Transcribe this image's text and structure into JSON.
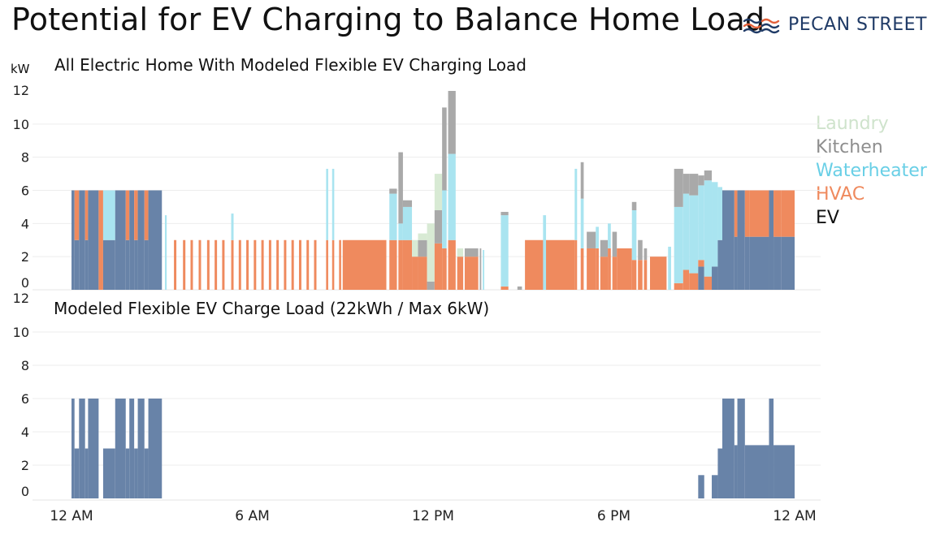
{
  "title": "Potential for EV Charging to Balance Home Load",
  "brand": {
    "name": "PECAN STREET",
    "icon": "pecan-street-logo-icon",
    "color": "#1f3a66"
  },
  "unit_label": "kW",
  "legend": [
    {
      "name": "Laundry",
      "color": "#cfe3cc"
    },
    {
      "name": "Kitchen",
      "color": "#8e8e8e"
    },
    {
      "name": "Waterheater",
      "color": "#69cfe6"
    },
    {
      "name": "HVAC",
      "color": "#ef8a5e"
    },
    {
      "name": "EV",
      "color": "#111111"
    }
  ],
  "chart_data": [
    {
      "type": "area",
      "stacked": true,
      "title": "All Electric Home With Modeled Flexible EV Charging Load",
      "ylabel": "kW",
      "ylim": [
        0,
        12
      ],
      "yticks": [
        0,
        2,
        4,
        6,
        8,
        10,
        12
      ],
      "x_ticks": [
        "12 AM",
        "6 AM",
        "12 PM",
        "6 PM",
        "12 AM"
      ],
      "x_range_hours": [
        0,
        24
      ],
      "series_order": [
        "EV",
        "HVAC",
        "Waterheater",
        "Kitchen",
        "Laundry"
      ],
      "series_colors": {
        "EV": "#6883a8",
        "HVAC": "#ef8a5e",
        "Waterheater": "#a9e4f0",
        "Kitchen": "#a9a9a9",
        "Laundry": "#d8ead4"
      },
      "segments": [
        {
          "t": [
            0.0,
            0.1
          ],
          "EV": 6
        },
        {
          "t": [
            0.1,
            0.25
          ],
          "EV": 3,
          "HVAC": 3
        },
        {
          "t": [
            0.25,
            0.45
          ],
          "EV": 6
        },
        {
          "t": [
            0.45,
            0.55
          ],
          "EV": 3,
          "HVAC": 3
        },
        {
          "t": [
            0.55,
            0.9
          ],
          "EV": 6
        },
        {
          "t": [
            0.9,
            1.05
          ],
          "HVAC": 6
        },
        {
          "t": [
            1.05,
            1.45
          ],
          "EV": 3,
          "Waterheater": 3
        },
        {
          "t": [
            1.45,
            1.8
          ],
          "EV": 6
        },
        {
          "t": [
            1.8,
            1.92
          ],
          "EV": 3,
          "HVAC": 3
        },
        {
          "t": [
            1.92,
            2.08
          ],
          "EV": 6
        },
        {
          "t": [
            2.08,
            2.2
          ],
          "EV": 3,
          "HVAC": 3
        },
        {
          "t": [
            2.2,
            2.42
          ],
          "EV": 6
        },
        {
          "t": [
            2.42,
            2.55
          ],
          "EV": 3,
          "HVAC": 3
        },
        {
          "t": [
            2.55,
            3.0
          ],
          "EV": 6
        },
        {
          "t": [
            3.1,
            3.16
          ],
          "Waterheater": 4.5
        },
        {
          "t": [
            3.4,
            3.48
          ],
          "HVAC": 3
        },
        {
          "t": [
            3.7,
            3.78
          ],
          "HVAC": 3
        },
        {
          "t": [
            3.95,
            4.03
          ],
          "HVAC": 3
        },
        {
          "t": [
            4.22,
            4.3
          ],
          "HVAC": 3
        },
        {
          "t": [
            4.5,
            4.58
          ],
          "HVAC": 3
        },
        {
          "t": [
            4.75,
            4.83
          ],
          "HVAC": 3
        },
        {
          "t": [
            5.0,
            5.08
          ],
          "HVAC": 3
        },
        {
          "t": [
            5.3,
            5.38
          ],
          "HVAC": 3,
          "Waterheater": 1.6
        },
        {
          "t": [
            5.55,
            5.63
          ],
          "HVAC": 3
        },
        {
          "t": [
            5.8,
            5.88
          ],
          "HVAC": 3
        },
        {
          "t": [
            6.05,
            6.13
          ],
          "HVAC": 3
        },
        {
          "t": [
            6.3,
            6.38
          ],
          "HVAC": 3
        },
        {
          "t": [
            6.55,
            6.63
          ],
          "HVAC": 3
        },
        {
          "t": [
            6.8,
            6.88
          ],
          "HVAC": 3
        },
        {
          "t": [
            7.05,
            7.13
          ],
          "HVAC": 3
        },
        {
          "t": [
            7.3,
            7.38
          ],
          "HVAC": 3
        },
        {
          "t": [
            7.55,
            7.63
          ],
          "HVAC": 3
        },
        {
          "t": [
            7.8,
            7.88
          ],
          "HVAC": 3
        },
        {
          "t": [
            8.05,
            8.13
          ],
          "HVAC": 3
        },
        {
          "t": [
            8.45,
            8.52
          ],
          "HVAC": 3,
          "Waterheater": 4.3
        },
        {
          "t": [
            8.65,
            8.72
          ],
          "HVAC": 3,
          "Waterheater": 4.3
        },
        {
          "t": [
            8.88,
            8.95
          ],
          "HVAC": 3
        },
        {
          "t": [
            9.0,
            10.45
          ],
          "HVAC": 3
        },
        {
          "t": [
            10.55,
            10.8
          ],
          "HVAC": 3,
          "Waterheater": 2.8,
          "Kitchen": 0.3
        },
        {
          "t": [
            10.85,
            11.0
          ],
          "HVAC": 3,
          "Waterheater": 1.0,
          "Kitchen": 4.3
        },
        {
          "t": [
            11.0,
            11.3
          ],
          "HVAC": 3,
          "Waterheater": 2.0,
          "Kitchen": 0.4
        },
        {
          "t": [
            11.3,
            11.5
          ],
          "HVAC": 2,
          "Laundry": 1.0
        },
        {
          "t": [
            11.5,
            11.8
          ],
          "HVAC": 2,
          "Kitchen": 1.0,
          "Laundry": 0.4
        },
        {
          "t": [
            11.8,
            12.05
          ],
          "Laundry": 3.5,
          "Kitchen": 0.5
        },
        {
          "t": [
            12.05,
            12.3
          ],
          "HVAC": 2.8,
          "Laundry": 2.2,
          "Kitchen": 2.0
        },
        {
          "t": [
            12.3,
            12.45
          ],
          "HVAC": 2.5,
          "Waterheater": 3.5,
          "Kitchen": 5.0
        },
        {
          "t": [
            12.5,
            12.75
          ],
          "HVAC": 3,
          "Waterheater": 5.2,
          "Kitchen": 3.8
        },
        {
          "t": [
            12.8,
            13.0
          ],
          "HVAC": 2,
          "Laundry": 0.5
        },
        {
          "t": [
            13.05,
            13.5
          ],
          "HVAC": 2,
          "Kitchen": 0.5
        },
        {
          "t": [
            13.55,
            13.6
          ],
          "Kitchen": 2.5
        },
        {
          "t": [
            13.65,
            13.7
          ],
          "Waterheater": 2.4
        },
        {
          "t": [
            14.25,
            14.5
          ],
          "HVAC": 0.2,
          "Waterheater": 4.3,
          "Kitchen": 0.2
        },
        {
          "t": [
            14.8,
            14.95
          ],
          "Kitchen": 0.2
        },
        {
          "t": [
            15.05,
            16.7
          ],
          "HVAC": 3
        },
        {
          "t": [
            15.65,
            15.75
          ],
          "Waterheater": 4.5
        },
        {
          "t": [
            16.7,
            16.78
          ],
          "HVAC": 3,
          "Waterheater": 4.3
        },
        {
          "t": [
            16.9,
            17.0
          ],
          "HVAC": 2.5,
          "Waterheater": 3.0,
          "Kitchen": 2.2
        },
        {
          "t": [
            17.1,
            17.4
          ],
          "HVAC": 2.5,
          "Kitchen": 1.0
        },
        {
          "t": [
            17.4,
            17.5
          ],
          "HVAC": 2.5,
          "Waterheater": 1.3
        },
        {
          "t": [
            17.55,
            17.8
          ],
          "HVAC": 2.0,
          "Kitchen": 1.0
        },
        {
          "t": [
            17.8,
            17.9
          ],
          "HVAC": 2.5,
          "Waterheater": 1.5
        },
        {
          "t": [
            17.95,
            18.1
          ],
          "HVAC": 2.0,
          "Kitchen": 1.5
        },
        {
          "t": [
            18.1,
            18.6
          ],
          "HVAC": 2.5
        },
        {
          "t": [
            18.6,
            18.75
          ],
          "HVAC": 1.8,
          "Waterheater": 3.0,
          "Kitchen": 0.5
        },
        {
          "t": [
            18.8,
            18.95
          ],
          "HVAC": 1.8,
          "Kitchen": 1.2
        },
        {
          "t": [
            19.0,
            19.1
          ],
          "HVAC": 1.8,
          "Kitchen": 0.7
        },
        {
          "t": [
            19.2,
            19.75
          ],
          "HVAC": 2.0
        },
        {
          "t": [
            19.8,
            19.9
          ],
          "Waterheater": 2.6
        },
        {
          "t": [
            20.0,
            20.3
          ],
          "HVAC": 0.4,
          "Waterheater": 4.6,
          "Kitchen": 2.3
        },
        {
          "t": [
            20.3,
            20.5
          ],
          "HVAC": 1.2,
          "Waterheater": 4.6,
          "Kitchen": 1.2
        },
        {
          "t": [
            20.5,
            20.8
          ],
          "HVAC": 1.0,
          "Waterheater": 4.7,
          "Kitchen": 1.3
        },
        {
          "t": [
            20.8,
            21.0
          ],
          "EV": 1.4,
          "HVAC": 0.4,
          "Waterheater": 4.5,
          "Kitchen": 0.6
        },
        {
          "t": [
            21.0,
            21.25
          ],
          "HVAC": 0.8,
          "Waterheater": 5.8,
          "Kitchen": 0.6
        },
        {
          "t": [
            21.25,
            21.45
          ],
          "EV": 1.4,
          "Waterheater": 5.1
        },
        {
          "t": [
            21.45,
            21.6
          ],
          "EV": 3,
          "Waterheater": 3.2
        },
        {
          "t": [
            21.6,
            22.0
          ],
          "EV": 6
        },
        {
          "t": [
            22.0,
            22.1
          ],
          "EV": 3.2,
          "HVAC": 2.8
        },
        {
          "t": [
            22.1,
            22.35
          ],
          "EV": 6
        },
        {
          "t": [
            22.35,
            22.5
          ],
          "EV": 3.2,
          "HVAC": 2.8
        },
        {
          "t": [
            22.5,
            23.15
          ],
          "EV": 3.2,
          "HVAC": 2.8
        },
        {
          "t": [
            23.15,
            23.3
          ],
          "EV": 6
        },
        {
          "t": [
            23.3,
            23.55
          ],
          "EV": 3.2,
          "HVAC": 2.8
        },
        {
          "t": [
            23.55,
            24.0
          ],
          "EV": 3.2,
          "HVAC": 2.8
        }
      ]
    },
    {
      "type": "area",
      "title": "Modeled Flexible EV Charge Load (22kWh / Max 6kW)",
      "ylim": [
        0,
        12
      ],
      "yticks": [
        0,
        2,
        4,
        6,
        8,
        10,
        12
      ],
      "x_ticks": [
        "12 AM",
        "6 AM",
        "12 PM",
        "6 PM",
        "12 AM"
      ],
      "x_range_hours": [
        0,
        24
      ],
      "series": [
        {
          "name": "EV",
          "color": "#6883a8",
          "segments": [
            {
              "t": [
                0.0,
                0.1
              ],
              "v": 6
            },
            {
              "t": [
                0.1,
                0.25
              ],
              "v": 3
            },
            {
              "t": [
                0.25,
                0.45
              ],
              "v": 6
            },
            {
              "t": [
                0.45,
                0.55
              ],
              "v": 3
            },
            {
              "t": [
                0.55,
                0.9
              ],
              "v": 6
            },
            {
              "t": [
                0.9,
                1.05
              ],
              "v": 0
            },
            {
              "t": [
                1.05,
                1.45
              ],
              "v": 3
            },
            {
              "t": [
                1.45,
                1.8
              ],
              "v": 6
            },
            {
              "t": [
                1.8,
                1.92
              ],
              "v": 3
            },
            {
              "t": [
                1.92,
                2.08
              ],
              "v": 6
            },
            {
              "t": [
                2.08,
                2.2
              ],
              "v": 3
            },
            {
              "t": [
                2.2,
                2.42
              ],
              "v": 6
            },
            {
              "t": [
                2.42,
                2.55
              ],
              "v": 3
            },
            {
              "t": [
                2.55,
                3.0
              ],
              "v": 6
            },
            {
              "t": [
                20.8,
                21.0
              ],
              "v": 1.4
            },
            {
              "t": [
                21.25,
                21.45
              ],
              "v": 1.4
            },
            {
              "t": [
                21.45,
                21.6
              ],
              "v": 3
            },
            {
              "t": [
                21.6,
                22.0
              ],
              "v": 6
            },
            {
              "t": [
                22.0,
                22.1
              ],
              "v": 3.2
            },
            {
              "t": [
                22.1,
                22.35
              ],
              "v": 6
            },
            {
              "t": [
                22.35,
                23.15
              ],
              "v": 3.2
            },
            {
              "t": [
                23.15,
                23.3
              ],
              "v": 6
            },
            {
              "t": [
                23.3,
                24.0
              ],
              "v": 3.2
            }
          ]
        }
      ]
    }
  ]
}
